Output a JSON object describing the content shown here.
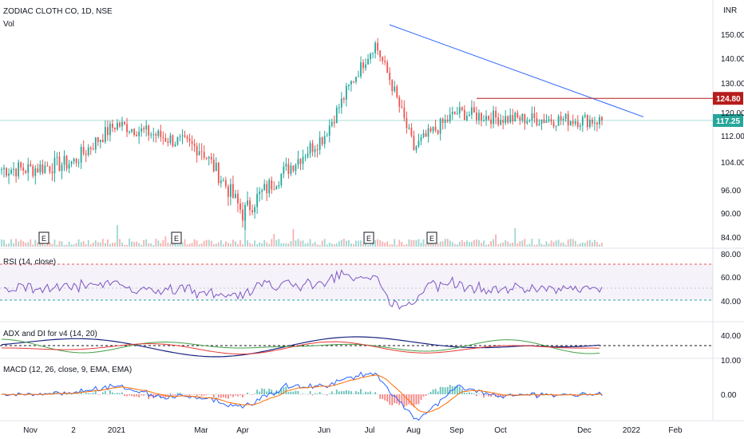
{
  "header": {
    "title": "ZODIAC CLOTH CO, 1D, NSE",
    "volume_label": "Vol",
    "currency": "INR"
  },
  "colors": {
    "up": "#26a69a",
    "down": "#ef5350",
    "rsi_line": "#7e57c2",
    "trendline": "#2962ff",
    "resistance": "#b71c1c",
    "current_price": "#26a69a",
    "adx": "#1a237e",
    "di_plus": "#43a047",
    "di_minus": "#e53935",
    "macd": "#2962ff",
    "signal": "#ff6d00"
  },
  "chart_data": {
    "type": "candlestick",
    "x_labels": [
      "Nov",
      "2",
      "2021",
      "Mar",
      "Apr",
      "Jun",
      "Jul",
      "Aug",
      "Sep",
      "Oct",
      "Dec",
      "2022",
      "Feb"
    ],
    "price_ticks": [
      "150.00",
      "140.00",
      "130.00",
      "120.00",
      "112.00",
      "104.00",
      "96.00",
      "90.00",
      "84.00"
    ],
    "price_range": [
      82,
      158
    ],
    "resistance_level": 124.8,
    "resistance_label": "124.80",
    "current_price": 117.25,
    "current_price_label": "117.25",
    "trendline": {
      "from": {
        "x_index": 0.47,
        "price": 154
      },
      "to": {
        "x_index": 0.91,
        "price": 118.5
      }
    },
    "earnings_markers": [
      "E",
      "E",
      "E",
      "E"
    ],
    "key_closes": [
      {
        "label": "Nov",
        "value": 102
      },
      {
        "label": "2",
        "value": 104
      },
      {
        "label": "2021",
        "value": 116
      },
      {
        "label": "Mar",
        "value": 108
      },
      {
        "label": "Apr",
        "value": 90
      },
      {
        "label": "Jun",
        "value": 112
      },
      {
        "label": "Jul",
        "value": 146
      },
      {
        "label": "Aug",
        "value": 108
      },
      {
        "label": "Sep",
        "value": 120
      },
      {
        "label": "Oct",
        "value": 118
      },
      {
        "label": "Dec",
        "value": 117.25
      }
    ],
    "rsi": {
      "label": "RSI (14, close)",
      "ticks": [
        "80.00",
        "60.00",
        "40.00"
      ],
      "upper": 70,
      "lower": 30
    },
    "adx": {
      "label": "ADX and DI for v4 (14, 20)",
      "ticks": [
        "40.00"
      ],
      "threshold": 20
    },
    "macd": {
      "label": "MACD (12, 26, close, 9, EMA, EMA)",
      "ticks": [
        "10.00",
        "0.00"
      ]
    }
  }
}
